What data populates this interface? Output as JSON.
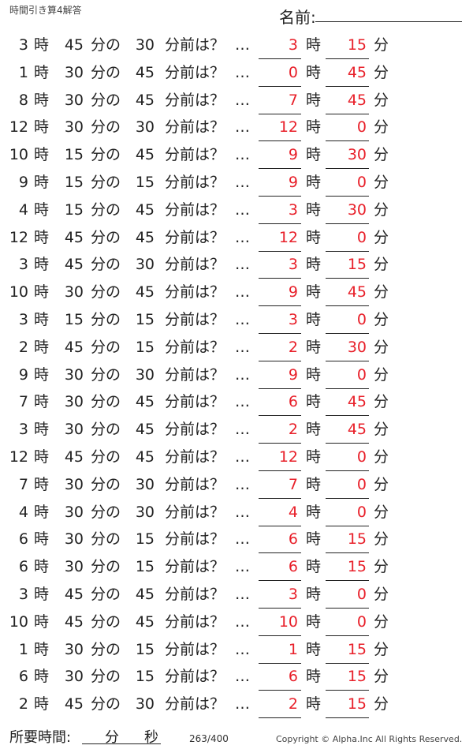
{
  "header": {
    "title": "時間引き算4解答",
    "name_label": "名前:"
  },
  "labels": {
    "hour": "時",
    "minute_of": "分の",
    "minute_before": "分前は？",
    "ellipsis": "…",
    "minute": "分"
  },
  "answer_color": "#e8202a",
  "problems": [
    {
      "h": "3",
      "m": "45",
      "sub": "30",
      "ah": "3",
      "am": "15"
    },
    {
      "h": "1",
      "m": "30",
      "sub": "45",
      "ah": "0",
      "am": "45"
    },
    {
      "h": "8",
      "m": "30",
      "sub": "45",
      "ah": "7",
      "am": "45"
    },
    {
      "h": "12",
      "m": "30",
      "sub": "30",
      "ah": "12",
      "am": "0"
    },
    {
      "h": "10",
      "m": "15",
      "sub": "45",
      "ah": "9",
      "am": "30"
    },
    {
      "h": "9",
      "m": "15",
      "sub": "15",
      "ah": "9",
      "am": "0"
    },
    {
      "h": "4",
      "m": "15",
      "sub": "45",
      "ah": "3",
      "am": "30"
    },
    {
      "h": "12",
      "m": "45",
      "sub": "45",
      "ah": "12",
      "am": "0"
    },
    {
      "h": "3",
      "m": "45",
      "sub": "30",
      "ah": "3",
      "am": "15"
    },
    {
      "h": "10",
      "m": "30",
      "sub": "45",
      "ah": "9",
      "am": "45"
    },
    {
      "h": "3",
      "m": "15",
      "sub": "15",
      "ah": "3",
      "am": "0"
    },
    {
      "h": "2",
      "m": "45",
      "sub": "15",
      "ah": "2",
      "am": "30"
    },
    {
      "h": "9",
      "m": "30",
      "sub": "30",
      "ah": "9",
      "am": "0"
    },
    {
      "h": "7",
      "m": "30",
      "sub": "45",
      "ah": "6",
      "am": "45"
    },
    {
      "h": "3",
      "m": "30",
      "sub": "45",
      "ah": "2",
      "am": "45"
    },
    {
      "h": "12",
      "m": "45",
      "sub": "45",
      "ah": "12",
      "am": "0"
    },
    {
      "h": "7",
      "m": "30",
      "sub": "30",
      "ah": "7",
      "am": "0"
    },
    {
      "h": "4",
      "m": "30",
      "sub": "30",
      "ah": "4",
      "am": "0"
    },
    {
      "h": "6",
      "m": "30",
      "sub": "15",
      "ah": "6",
      "am": "15"
    },
    {
      "h": "6",
      "m": "30",
      "sub": "15",
      "ah": "6",
      "am": "15"
    },
    {
      "h": "3",
      "m": "45",
      "sub": "45",
      "ah": "3",
      "am": "0"
    },
    {
      "h": "10",
      "m": "45",
      "sub": "45",
      "ah": "10",
      "am": "0"
    },
    {
      "h": "1",
      "m": "30",
      "sub": "15",
      "ah": "1",
      "am": "15"
    },
    {
      "h": "6",
      "m": "30",
      "sub": "15",
      "ah": "6",
      "am": "15"
    },
    {
      "h": "2",
      "m": "45",
      "sub": "30",
      "ah": "2",
      "am": "15"
    }
  ],
  "footer": {
    "time_label": "所要時間:",
    "minute": "分",
    "second": "秒",
    "page": "263/400",
    "copyright": "Copyright ©  Alpha.Inc All Rights Reserved."
  }
}
